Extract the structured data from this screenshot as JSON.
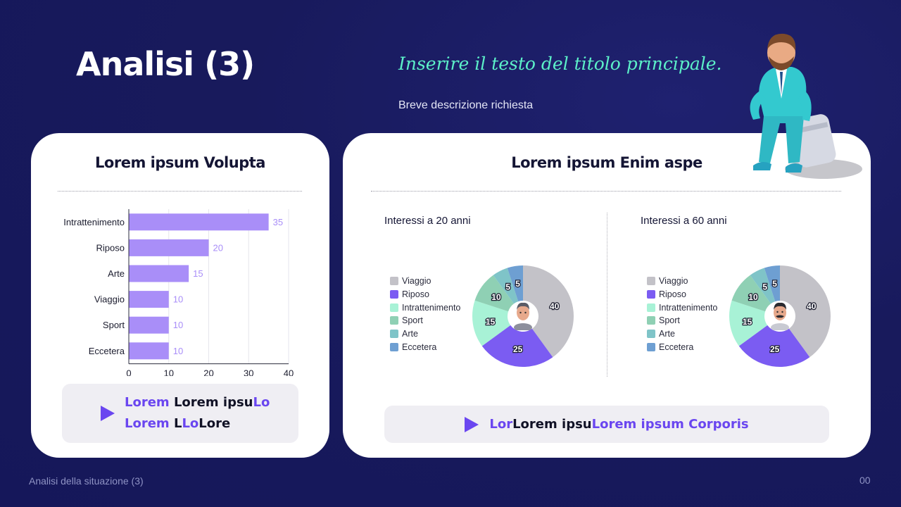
{
  "slide": {
    "title": "Analisi (3)",
    "headline": "Inserire il testo del titolo principale.",
    "subheading": "Breve descrizione richiesta",
    "footer": {
      "section": "Analisi della situazione (3)",
      "page_number": "00"
    }
  },
  "colors": {
    "background": "#181a5c",
    "accent": "#6a46f0",
    "headline": "#5cf0c8",
    "bar": "#a98ef8",
    "bar_label": "#a98ef8"
  },
  "left_card": {
    "title": "Lorem ipsum Volupta",
    "callout": {
      "line1": [
        {
          "text": "Lorem ",
          "style": "accent"
        },
        {
          "text": "Lorem ipsu",
          "style": "dark"
        },
        {
          "text": "Lo",
          "style": "accent"
        }
      ],
      "line2": [
        {
          "text": "Lorem ",
          "style": "accent"
        },
        {
          "text": "L",
          "style": "dark"
        },
        {
          "text": "Lo",
          "style": "accent"
        },
        {
          "text": "Lore",
          "style": "dark"
        }
      ],
      "icon": "play-icon"
    }
  },
  "right_card": {
    "title": "Lorem ipsum Enim aspe",
    "callout": {
      "segments": [
        {
          "text": "Lor",
          "style": "accent"
        },
        {
          "text": "Lorem ipsu",
          "style": "dark"
        },
        {
          "text": "Lorem ipsum Corporis",
          "style": "accent"
        }
      ],
      "icon": "play-icon"
    },
    "decoration_icon": "businessman-with-suitcase-icon"
  },
  "chart_data": [
    {
      "type": "bar",
      "orientation": "horizontal",
      "categories": [
        "Intrattenimento",
        "Riposo",
        "Arte",
        "Viaggio",
        "Sport",
        "Eccetera"
      ],
      "values": [
        35,
        20,
        15,
        10,
        10,
        10
      ],
      "xlim": [
        0,
        40
      ],
      "xticks": [
        0,
        10,
        20,
        30,
        40
      ],
      "grid": true,
      "data_labels": true
    },
    {
      "type": "pie",
      "variant": "donut",
      "title": "Interessi a 20 anni",
      "categories": [
        "Viaggio",
        "Riposo",
        "Intrattenimento",
        "Sport",
        "Arte",
        "Eccetera"
      ],
      "values": [
        40,
        25,
        15,
        10,
        5,
        5
      ],
      "colors": [
        "#c3c2c8",
        "#7b5cf2",
        "#a8f2d6",
        "#8fd0b4",
        "#7fc4c8",
        "#6e9fd2"
      ],
      "legend_position": "left",
      "center_icon": "young-man-avatar-icon"
    },
    {
      "type": "pie",
      "variant": "donut",
      "title": "Interessi a 60 anni",
      "categories": [
        "Viaggio",
        "Riposo",
        "Intrattenimento",
        "Sport",
        "Arte",
        "Eccetera"
      ],
      "values": [
        40,
        25,
        15,
        10,
        5,
        5
      ],
      "colors": [
        "#c3c2c8",
        "#7b5cf2",
        "#a8f2d6",
        "#8fd0b4",
        "#7fc4c8",
        "#6e9fd2"
      ],
      "legend_position": "left",
      "center_icon": "old-man-avatar-icon"
    }
  ]
}
